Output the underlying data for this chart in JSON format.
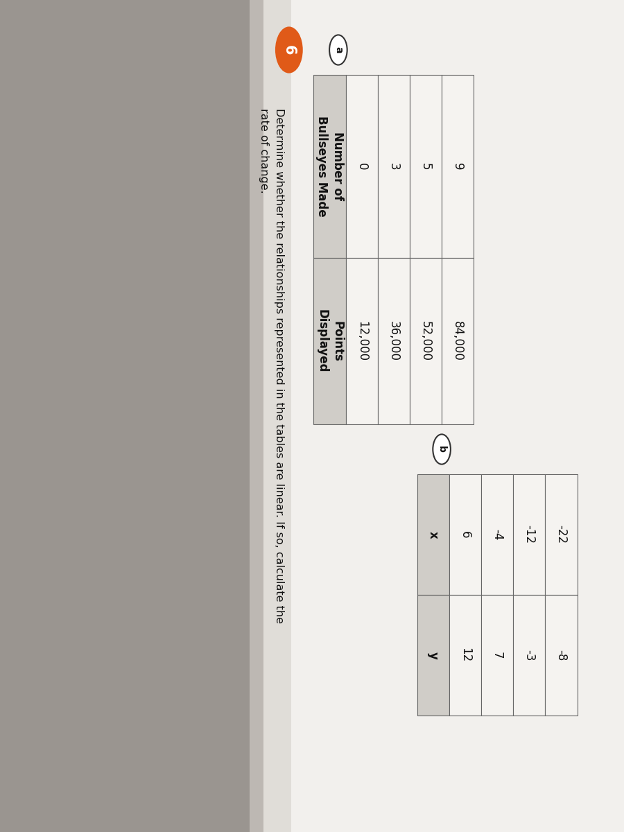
{
  "title_number": "6",
  "title_text": "Determine whether the relationships represented in the tables are linear. If so, calculate the\nrate of change.",
  "label_a": "a",
  "label_b": "b",
  "table_a_col1_header": "Number of\nBullseyes Made",
  "table_a_col2_header": "Points\nDisplayed",
  "table_a_data": [
    [
      "0",
      "12,000"
    ],
    [
      "3",
      "36,000"
    ],
    [
      "5",
      "52,000"
    ],
    [
      "9",
      "84,000"
    ]
  ],
  "table_b_col1_header": "x",
  "table_b_col2_header": "y",
  "table_b_data": [
    [
      "6",
      "12"
    ],
    [
      "-4",
      "7"
    ],
    [
      "-12",
      "-3"
    ],
    [
      "-22",
      "-8"
    ]
  ],
  "bg_color_dark": "#b0aca5",
  "bg_color_light": "#c8c5be",
  "paper_color": "#f2f0ed",
  "paper_color2": "#e8e5e0",
  "header_shade": "#d0cdc8",
  "cell_color": "#f5f3f0",
  "text_color": "#111111",
  "circle_bg": "#e05a18",
  "line_color": "#666666",
  "title_fontsize": 11.5,
  "table_fontsize": 12,
  "circle_label_fontsize": 10
}
